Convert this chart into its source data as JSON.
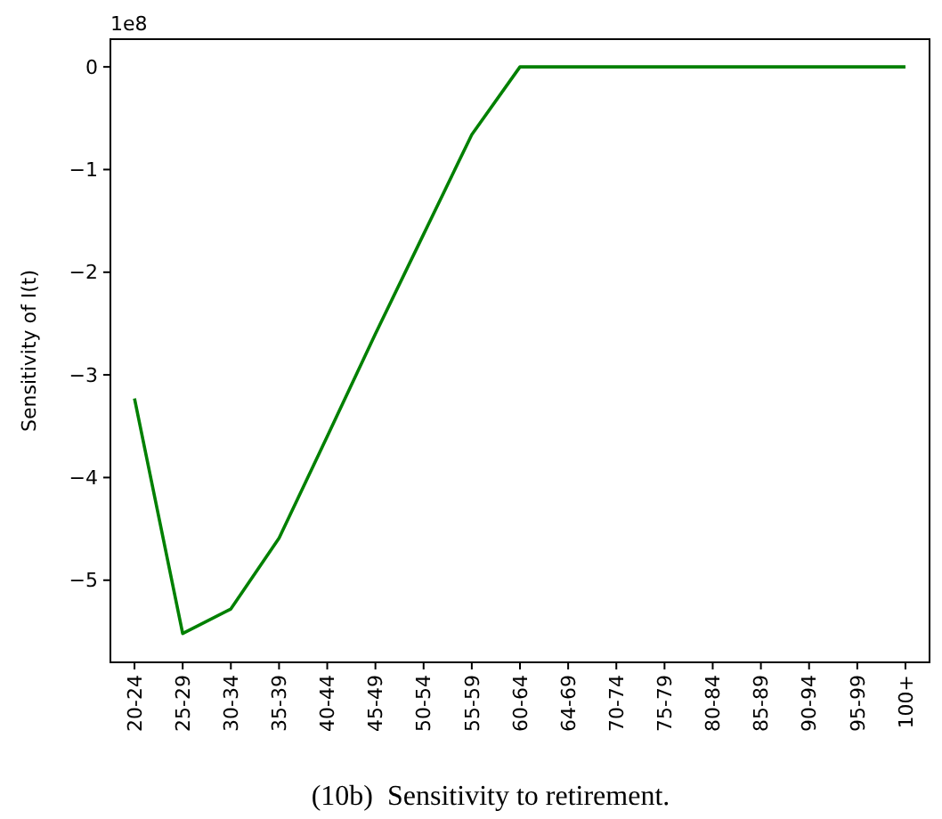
{
  "chart_data": {
    "type": "line",
    "ylabel": "Sensitivity of I(t)",
    "categories": [
      "20-24",
      "25-29",
      "30-34",
      "35-39",
      "40-44",
      "45-49",
      "50-54",
      "55-59",
      "60-64",
      "64-69",
      "70-74",
      "75-79",
      "80-84",
      "85-89",
      "90-94",
      "95-99",
      "100+"
    ],
    "series": [
      {
        "color": "#008000",
        "values": [
          -3.23,
          -5.52,
          -5.28,
          -4.59,
          -3.6,
          -2.6,
          -1.63,
          -0.66,
          0,
          0,
          0,
          0,
          0,
          0,
          0,
          0,
          0
        ]
      }
    ],
    "ylim": [
      -5.8,
      0.27
    ],
    "yticks": [
      {
        "value": -5,
        "label": "−5"
      },
      {
        "value": -4,
        "label": "−4"
      },
      {
        "value": -3,
        "label": "−3"
      },
      {
        "value": -2,
        "label": "−2"
      },
      {
        "value": -1,
        "label": "−1"
      },
      0
    ],
    "grid": false,
    "marker": "none",
    "line_style": "solid",
    "annotations": [
      "1e8",
      "(10b)  Sensitivity to retirement."
    ]
  }
}
